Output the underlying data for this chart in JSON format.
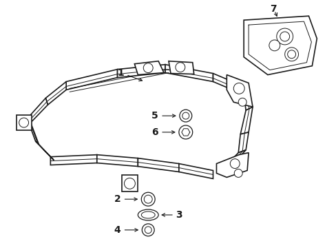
{
  "bg_color": "#ffffff",
  "line_color": "#1a1a1a",
  "fig_width": 4.89,
  "fig_height": 3.6,
  "dpi": 100,
  "lw_main": 1.2,
  "lw_thin": 0.7,
  "lw_med": 0.9
}
